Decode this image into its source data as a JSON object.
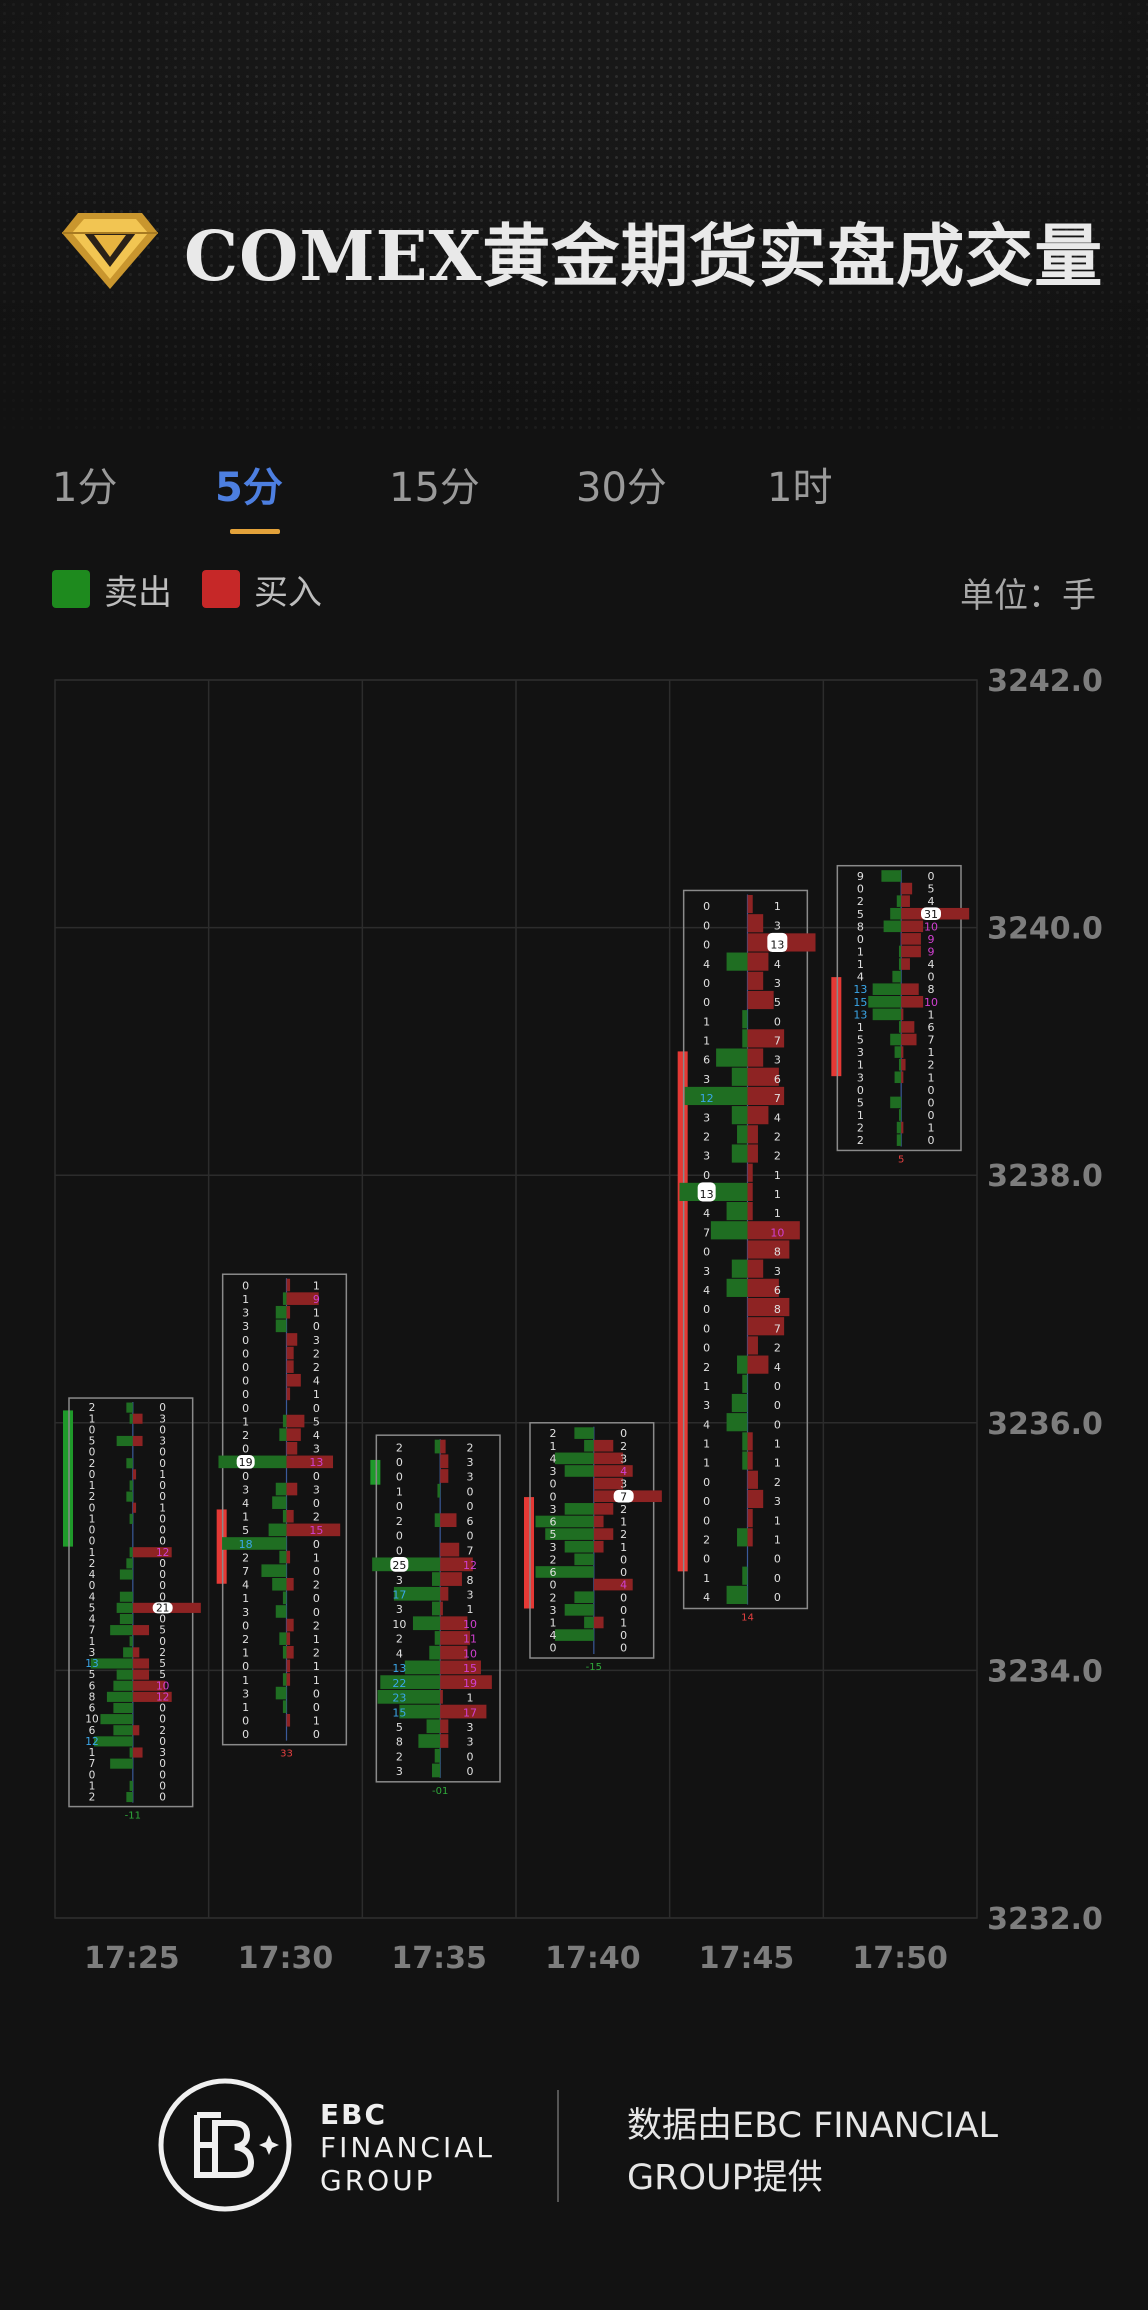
{
  "header": {
    "title": "COMEX黄金期货实盘成交量"
  },
  "tabs": [
    {
      "label": "1分",
      "active": false
    },
    {
      "label": "5分",
      "active": true
    },
    {
      "label": "15分",
      "active": false
    },
    {
      "label": "30分",
      "active": false
    },
    {
      "label": "1时",
      "active": false
    }
  ],
  "legend": {
    "sell_label": "卖出",
    "sell_color": "#1e8a1e",
    "buy_label": "买入",
    "buy_color": "#c62828"
  },
  "unit_label": "单位：手",
  "chart_data": {
    "type": "footprint",
    "ylim": [
      3232.0,
      3242.0
    ],
    "y_ticks": [
      "3242.0",
      "3240.0",
      "3238.0",
      "3236.0",
      "3234.0",
      "3232.0"
    ],
    "categories": [
      "17:25",
      "17:30",
      "17:35",
      "17:40",
      "17:45",
      "17:50"
    ],
    "grid": true,
    "candles": [
      {
        "time": "17:25",
        "direction": "sell",
        "body": [
          3235.0,
          3236.1
        ],
        "box": [
          3232.9,
          3236.2
        ],
        "delta": "-11",
        "sell": [
          2,
          1,
          0,
          5,
          0,
          2,
          0,
          1,
          2,
          0,
          1,
          0,
          0,
          1,
          2,
          4,
          0,
          4,
          5,
          4,
          7,
          1,
          3,
          13,
          5,
          6,
          8,
          6,
          10,
          6,
          12,
          1,
          7,
          0,
          1,
          2
        ],
        "buy": [
          0,
          3,
          0,
          3,
          0,
          0,
          1,
          0,
          0,
          1,
          0,
          0,
          0,
          12,
          0,
          0,
          0,
          0,
          21,
          0,
          5,
          0,
          2,
          5,
          5,
          10,
          12,
          0,
          0,
          2,
          0,
          3,
          0,
          0,
          0,
          0
        ],
        "white_levels": [
          21
        ],
        "annotated_sell_levels": [],
        "annotated_buy_levels": [
          12
        ]
      },
      {
        "time": "17:30",
        "direction": "buy",
        "body": [
          3234.7,
          3235.3
        ],
        "box": [
          3233.4,
          3237.2
        ],
        "delta": "33",
        "sell": [
          0,
          1,
          3,
          3,
          0,
          0,
          0,
          0,
          0,
          0,
          1,
          2,
          0,
          19,
          0,
          3,
          4,
          1,
          5,
          18,
          2,
          7,
          4,
          1,
          3,
          0,
          2,
          1,
          0,
          1,
          3,
          1,
          0,
          0
        ],
        "buy": [
          1,
          9,
          1,
          0,
          3,
          2,
          2,
          4,
          1,
          0,
          5,
          4,
          3,
          13,
          0,
          3,
          0,
          2,
          15,
          0,
          1,
          0,
          2,
          0,
          0,
          2,
          1,
          2,
          1,
          1,
          0,
          0,
          1,
          0
        ],
        "white_levels": [
          19
        ],
        "annotated_sell_levels": [],
        "annotated_buy_levels": [
          13,
          15
        ]
      },
      {
        "time": "17:35",
        "direction": "sell",
        "body": [
          3235.5,
          3235.7
        ],
        "box": [
          3233.1,
          3235.9
        ],
        "delta": "-01",
        "sell": [
          2,
          0,
          0,
          1,
          0,
          2,
          0,
          0,
          25,
          3,
          17,
          3,
          10,
          2,
          4,
          13,
          22,
          23,
          15,
          5,
          8,
          2,
          3
        ],
        "buy": [
          2,
          3,
          3,
          0,
          0,
          6,
          0,
          7,
          12,
          8,
          3,
          1,
          10,
          11,
          10,
          15,
          19,
          1,
          17,
          3,
          3,
          0,
          0
        ],
        "white_levels": [
          25
        ],
        "annotated_sell_levels": [],
        "annotated_buy_levels": [
          19
        ]
      },
      {
        "time": "17:40",
        "direction": "buy",
        "body": [
          3234.5,
          3235.4
        ],
        "box": [
          3234.1,
          3236.0
        ],
        "delta": "-15",
        "sell": [
          2,
          1,
          4,
          3,
          0,
          0,
          3,
          6,
          5,
          3,
          2,
          6,
          0,
          2,
          3,
          1,
          4,
          0
        ],
        "buy": [
          0,
          2,
          3,
          4,
          3,
          7,
          2,
          1,
          2,
          1,
          0,
          0,
          4,
          0,
          0,
          1,
          0,
          0
        ],
        "white_levels": [
          7
        ],
        "annotated_sell_levels": [],
        "annotated_buy_levels": [
          4
        ]
      },
      {
        "time": "17:45",
        "direction": "buy",
        "body": [
          3234.8,
          3239.0
        ],
        "box": [
          3234.5,
          3240.3
        ],
        "delta": "14",
        "sell": [
          0,
          0,
          0,
          4,
          0,
          0,
          1,
          1,
          6,
          3,
          12,
          3,
          2,
          3,
          0,
          13,
          4,
          7,
          0,
          3,
          4,
          0,
          0,
          0,
          2,
          1,
          3,
          4,
          1,
          1,
          0,
          0,
          0,
          2,
          0,
          1,
          4
        ],
        "buy": [
          1,
          3,
          13,
          4,
          3,
          5,
          0,
          7,
          3,
          6,
          7,
          4,
          2,
          2,
          1,
          1,
          1,
          10,
          8,
          3,
          6,
          8,
          7,
          2,
          4,
          0,
          0,
          0,
          1,
          1,
          2,
          3,
          1,
          1,
          0,
          0,
          0
        ],
        "white_levels": [
          13,
          13
        ],
        "annotated_sell_levels": [],
        "annotated_buy_levels": [
          10
        ]
      },
      {
        "time": "17:50",
        "direction": "buy",
        "body": [
          3238.8,
          3239.6
        ],
        "box": [
          3238.2,
          3240.5
        ],
        "delta": "5",
        "sell": [
          9,
          0,
          2,
          5,
          8,
          0,
          1,
          1,
          4,
          13,
          15,
          13,
          1,
          5,
          3,
          1,
          3,
          0,
          5,
          1,
          2,
          2
        ],
        "buy": [
          0,
          5,
          4,
          31,
          10,
          9,
          9,
          4,
          0,
          8,
          10,
          1,
          6,
          7,
          1,
          2,
          1,
          0,
          0,
          0,
          1,
          0
        ],
        "white_levels": [
          31
        ],
        "annotated_sell_levels": [],
        "annotated_buy_levels": [
          9,
          10
        ]
      }
    ]
  },
  "footer": {
    "brand_line1": "EBC",
    "brand_line2": "FINANCIAL",
    "brand_line3": "GROUP",
    "credit": "数据由EBC FINANCIAL GROUP提供"
  }
}
